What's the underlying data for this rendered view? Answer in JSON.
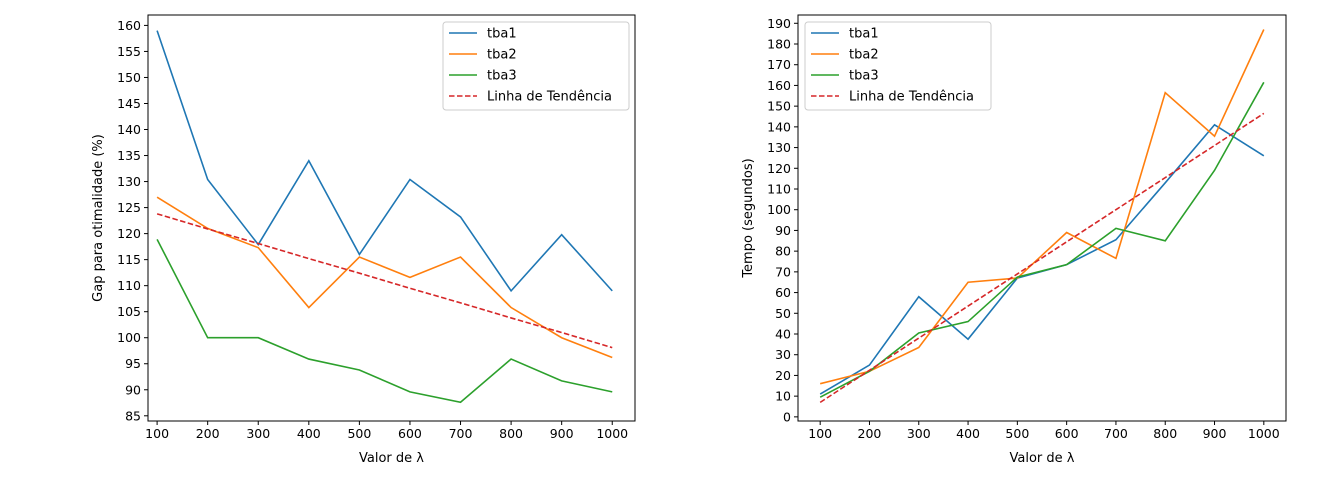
{
  "chart_data": [
    {
      "type": "line",
      "xlabel": "Valor de λ",
      "ylabel": "Gap para otimalidade (%)",
      "x": [
        100,
        200,
        300,
        400,
        500,
        600,
        700,
        800,
        900,
        1000
      ],
      "xticks": [
        100,
        200,
        300,
        400,
        500,
        600,
        700,
        800,
        900,
        1000
      ],
      "xlim": [
        82,
        1045
      ],
      "ylim": [
        84,
        162
      ],
      "yticks": [
        85,
        90,
        95,
        100,
        105,
        110,
        115,
        120,
        125,
        130,
        135,
        140,
        145,
        150,
        155,
        160
      ],
      "legend_position": "top-right",
      "series": [
        {
          "name": "tba1",
          "color": "#1f77b4",
          "dashed": false,
          "values": [
            159,
            130.4,
            117.9,
            134,
            116,
            130.4,
            123.2,
            109,
            119.8,
            109
          ]
        },
        {
          "name": "tba2",
          "color": "#ff7f0e",
          "dashed": false,
          "values": [
            127,
            121,
            117.3,
            105.8,
            115.5,
            111.6,
            115.5,
            105.8,
            100,
            96.2
          ]
        },
        {
          "name": "tba3",
          "color": "#2ca02c",
          "dashed": false,
          "values": [
            118.9,
            100,
            100,
            95.9,
            93.8,
            89.6,
            87.6,
            95.9,
            91.7,
            89.6
          ]
        },
        {
          "name": "Linha de Tendência",
          "color": "#d62728",
          "dashed": true,
          "values": [
            123.8,
            120.9,
            118.1,
            115.2,
            112.4,
            109.5,
            106.7,
            103.8,
            101,
            98.1
          ]
        }
      ]
    },
    {
      "type": "line",
      "xlabel": "Valor de λ",
      "ylabel": "Tempo (segundos)",
      "x": [
        100,
        200,
        300,
        400,
        500,
        600,
        700,
        800,
        900,
        1000
      ],
      "xticks": [
        100,
        200,
        300,
        400,
        500,
        600,
        700,
        800,
        900,
        1000
      ],
      "xlim": [
        55,
        1045
      ],
      "ylim": [
        -2,
        194
      ],
      "yticks": [
        0,
        10,
        20,
        30,
        40,
        50,
        60,
        70,
        80,
        90,
        100,
        110,
        120,
        130,
        140,
        150,
        160,
        170,
        180,
        190
      ],
      "legend_position": "top-left",
      "series": [
        {
          "name": "tba1",
          "color": "#1f77b4",
          "dashed": false,
          "values": [
            11,
            25,
            58,
            37.5,
            67,
            73.5,
            85.5,
            113,
            141,
            126
          ]
        },
        {
          "name": "tba2",
          "color": "#ff7f0e",
          "dashed": false,
          "values": [
            16,
            22,
            33.5,
            65,
            67,
            89,
            76.5,
            156.5,
            135.5,
            187
          ]
        },
        {
          "name": "tba3",
          "color": "#2ca02c",
          "dashed": false,
          "values": [
            9.5,
            22,
            40.5,
            46,
            67.5,
            73.5,
            91,
            85,
            119,
            161.5
          ]
        },
        {
          "name": "Linha de Tendência",
          "color": "#d62728",
          "dashed": true,
          "values": [
            7,
            22.5,
            38,
            53.5,
            69,
            84.5,
            100,
            115.5,
            131,
            146.5
          ]
        }
      ]
    }
  ]
}
